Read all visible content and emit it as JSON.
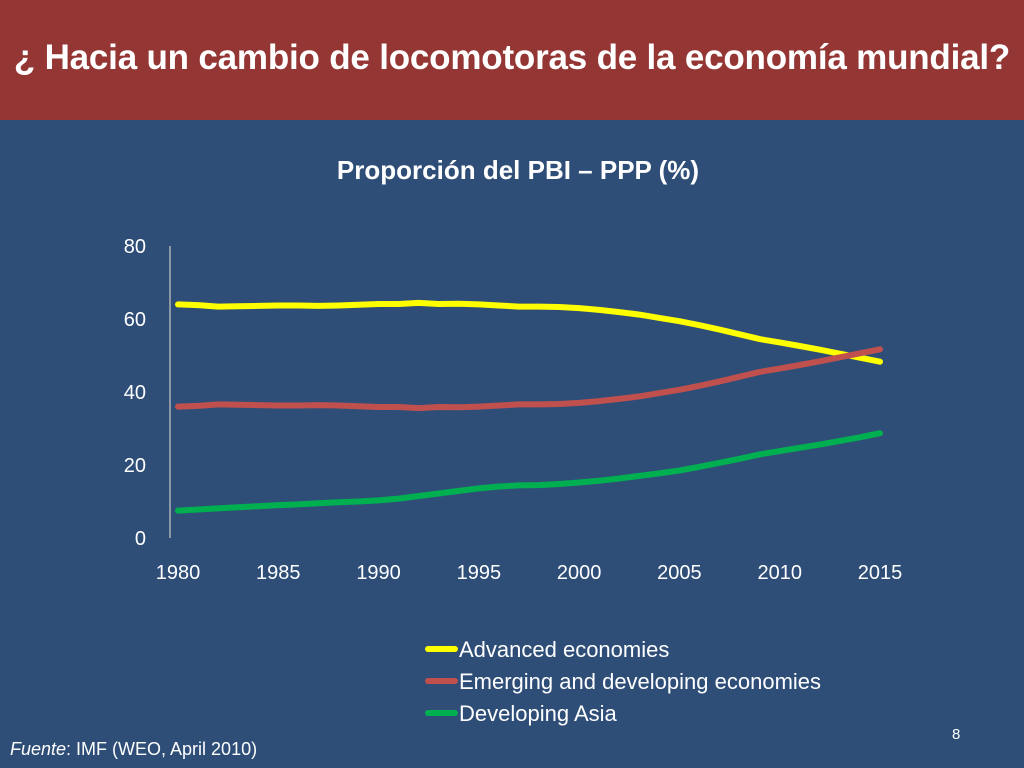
{
  "slide": {
    "title": "¿ Hacia un cambio de locomotoras de la economía mundial?",
    "page_number": "8",
    "source_label": "Fuente",
    "source_text": ": IMF (WEO, April 2010)",
    "background_color": "#2e4e78",
    "header_color": "#943634"
  },
  "chart_data": {
    "type": "line",
    "title": "Proporción del PBI – PPP (%)",
    "xlabel": "",
    "ylabel": "",
    "xlim": [
      1980,
      2015
    ],
    "ylim": [
      0,
      80
    ],
    "x_ticks": [
      "1980",
      "1985",
      "1990",
      "1995",
      "2000",
      "2005",
      "2010",
      "2015"
    ],
    "y_ticks": [
      "0",
      "20",
      "40",
      "60",
      "80"
    ],
    "grid": false,
    "legend_position": "bottom",
    "x": [
      1980,
      1981,
      1982,
      1983,
      1984,
      1985,
      1986,
      1987,
      1988,
      1989,
      1990,
      1991,
      1992,
      1993,
      1994,
      1995,
      1996,
      1997,
      1998,
      1999,
      2000,
      2001,
      2002,
      2003,
      2004,
      2005,
      2006,
      2007,
      2008,
      2009,
      2010,
      2011,
      2012,
      2013,
      2014,
      2015
    ],
    "series": [
      {
        "name": "Advanced economies",
        "color": "#ffff00",
        "values": [
          64.0,
          63.8,
          63.4,
          63.5,
          63.6,
          63.7,
          63.7,
          63.6,
          63.7,
          63.9,
          64.1,
          64.1,
          64.4,
          64.1,
          64.2,
          64.0,
          63.7,
          63.4,
          63.4,
          63.3,
          63.0,
          62.5,
          61.9,
          61.2,
          60.3,
          59.4,
          58.3,
          57.1,
          55.8,
          54.5,
          53.6,
          52.6,
          51.6,
          50.5,
          49.4,
          48.3
        ]
      },
      {
        "name": "Emerging and developing economies",
        "color": "#c0504d",
        "values": [
          36.0,
          36.2,
          36.6,
          36.5,
          36.4,
          36.3,
          36.3,
          36.4,
          36.3,
          36.1,
          35.9,
          35.9,
          35.6,
          35.9,
          35.8,
          36.0,
          36.3,
          36.6,
          36.6,
          36.7,
          37.0,
          37.5,
          38.1,
          38.8,
          39.7,
          40.6,
          41.7,
          42.9,
          44.2,
          45.5,
          46.4,
          47.4,
          48.4,
          49.5,
          50.6,
          51.7
        ]
      },
      {
        "name": "Developing Asia",
        "color": "#00b050",
        "values": [
          7.5,
          7.8,
          8.1,
          8.4,
          8.7,
          9.0,
          9.2,
          9.5,
          9.8,
          10.0,
          10.3,
          10.8,
          11.5,
          12.2,
          12.9,
          13.6,
          14.1,
          14.4,
          14.5,
          14.8,
          15.2,
          15.7,
          16.3,
          17.0,
          17.7,
          18.5,
          19.5,
          20.6,
          21.7,
          22.9,
          23.8,
          24.7,
          25.6,
          26.6,
          27.6,
          28.7
        ]
      }
    ]
  }
}
